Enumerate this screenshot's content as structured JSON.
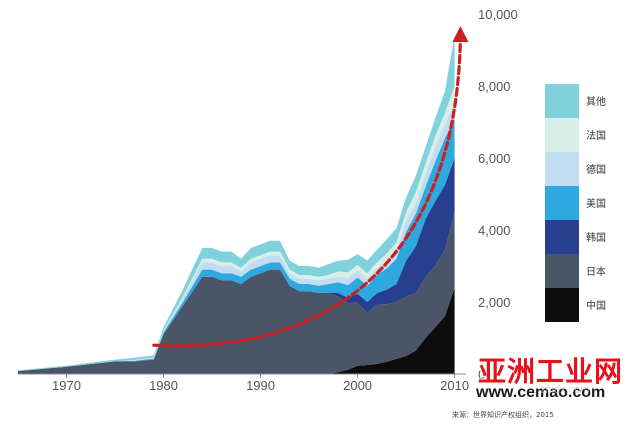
{
  "chart_data": {
    "type": "area",
    "stacked": true,
    "x": [
      1965,
      1970,
      1975,
      1977,
      1979,
      1980,
      1982,
      1984,
      1985,
      1986,
      1987,
      1988,
      1989,
      1990,
      1991,
      1992,
      1993,
      1994,
      1995,
      1996,
      1997,
      1998,
      1999,
      2000,
      2001,
      2002,
      2003,
      2004,
      2005,
      2006,
      2007,
      2008,
      2009,
      2010
    ],
    "series": [
      {
        "name": "中国",
        "color": "#0d0d0d",
        "values": [
          0,
          0,
          0,
          0,
          0,
          0,
          0,
          0,
          0,
          0,
          0,
          0,
          0,
          0,
          0,
          0,
          0,
          0,
          0,
          0,
          0,
          50,
          120,
          230,
          250,
          280,
          340,
          420,
          500,
          650,
          1000,
          1300,
          1600,
          2400
        ]
      },
      {
        "name": "日本",
        "color": "#4a5668",
        "values": [
          80,
          200,
          350,
          350,
          400,
          1100,
          1900,
          2700,
          2700,
          2600,
          2600,
          2500,
          2700,
          2800,
          2900,
          2900,
          2450,
          2300,
          2300,
          2250,
          2250,
          2100,
          1850,
          1750,
          1450,
          1650,
          1600,
          1580,
          1650,
          1600,
          1700,
          1700,
          1850,
          2100
        ]
      },
      {
        "name": "韩国",
        "color": "#283f8f",
        "values": [
          0,
          0,
          0,
          0,
          0,
          0,
          0,
          0,
          0,
          0,
          0,
          0,
          0,
          0,
          0,
          0,
          0,
          0,
          0,
          0,
          0,
          100,
          150,
          250,
          300,
          320,
          400,
          500,
          1000,
          1300,
          1600,
          1800,
          1800,
          1500
        ]
      },
      {
        "name": "美国",
        "color": "#2ea9e0",
        "values": [
          0,
          0,
          0,
          20,
          30,
          60,
          100,
          200,
          200,
          200,
          200,
          200,
          200,
          200,
          200,
          200,
          200,
          200,
          200,
          200,
          250,
          300,
          350,
          450,
          450,
          500,
          600,
          700,
          800,
          900,
          900,
          1100,
          1300,
          1100
        ]
      },
      {
        "name": "德国",
        "color": "#c2dcf2",
        "values": [
          0,
          0,
          0,
          10,
          20,
          40,
          100,
          200,
          200,
          200,
          200,
          150,
          200,
          200,
          200,
          200,
          150,
          150,
          150,
          150,
          150,
          150,
          200,
          200,
          200,
          200,
          200,
          250,
          300,
          300,
          350,
          400,
          400,
          400
        ]
      },
      {
        "name": "法国",
        "color": "#d7efe6",
        "values": [
          0,
          0,
          0,
          10,
          10,
          20,
          50,
          100,
          100,
          100,
          100,
          100,
          100,
          100,
          100,
          100,
          100,
          100,
          100,
          100,
          100,
          150,
          150,
          150,
          150,
          150,
          200,
          200,
          250,
          300,
          300,
          300,
          300,
          500
        ]
      },
      {
        "name": "其他",
        "color": "#7fd1dc",
        "values": [
          20,
          30,
          50,
          60,
          60,
          80,
          200,
          300,
          300,
          300,
          300,
          250,
          300,
          300,
          300,
          300,
          250,
          250,
          250,
          250,
          300,
          300,
          350,
          300,
          350,
          350,
          400,
          400,
          400,
          450,
          450,
          500,
          600,
          1400
        ]
      }
    ],
    "xlim": [
      1965,
      2012
    ],
    "ylim": [
      0,
      10000
    ],
    "x_ticks": [
      "1970",
      "1980",
      "1990",
      "2000",
      "2010"
    ],
    "y_ticks": [
      "0",
      "2,000",
      "4,000",
      "6,000",
      "8,000",
      "10,000"
    ],
    "y_axis_position": "right",
    "legend_placement": "right",
    "trend_arrow": {
      "color": "#cc1f1f",
      "style": "dashed",
      "direction": "up"
    }
  },
  "source_note": "来源：世界知识产权组织，2015",
  "watermark": {
    "title": "亚洲工业网",
    "url": "www.cemao.com",
    "faint": "zhidx.com"
  }
}
